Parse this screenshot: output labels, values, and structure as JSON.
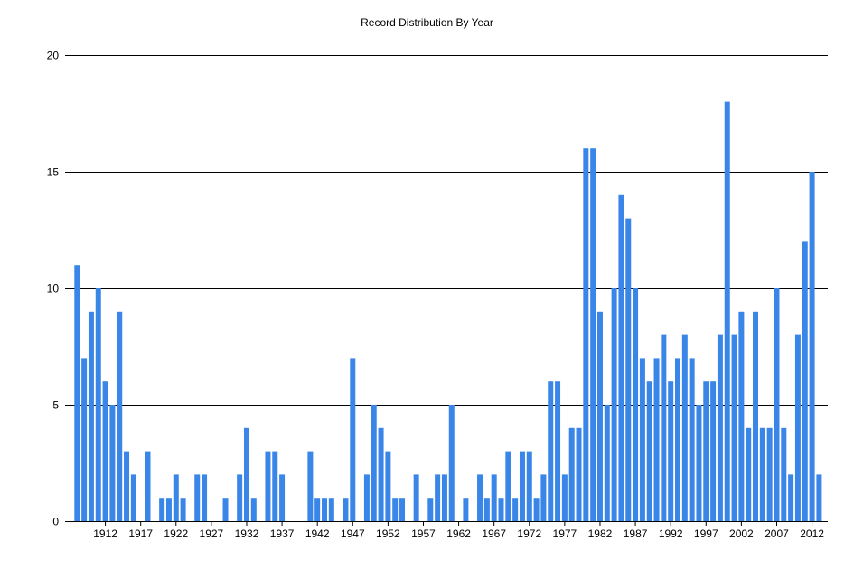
{
  "chart_data": {
    "type": "bar",
    "title": "Record Distribution By Year",
    "xlabel": "",
    "ylabel": "",
    "ylim": [
      0,
      20
    ],
    "y_ticks": [
      0,
      5,
      10,
      15,
      20
    ],
    "x_tick_labels": [
      "1912",
      "1917",
      "1922",
      "1927",
      "1932",
      "1937",
      "1942",
      "1947",
      "1952",
      "1957",
      "1962",
      "1967",
      "1972",
      "1977",
      "1982",
      "1987",
      "1992",
      "1997",
      "2002",
      "2007",
      "2012"
    ],
    "grid": "horizontal",
    "bar_color": "#3a86e8",
    "categories": [
      1908,
      1909,
      1910,
      1911,
      1912,
      1913,
      1914,
      1915,
      1916,
      1917,
      1918,
      1919,
      1920,
      1921,
      1922,
      1923,
      1924,
      1925,
      1926,
      1927,
      1928,
      1929,
      1930,
      1931,
      1932,
      1933,
      1934,
      1935,
      1936,
      1937,
      1938,
      1939,
      1940,
      1941,
      1942,
      1943,
      1944,
      1945,
      1946,
      1947,
      1948,
      1949,
      1950,
      1951,
      1952,
      1953,
      1954,
      1955,
      1956,
      1957,
      1958,
      1959,
      1960,
      1961,
      1962,
      1963,
      1964,
      1965,
      1966,
      1967,
      1968,
      1969,
      1970,
      1971,
      1972,
      1973,
      1974,
      1975,
      1976,
      1977,
      1978,
      1979,
      1980,
      1981,
      1982,
      1983,
      1984,
      1985,
      1986,
      1987,
      1988,
      1989,
      1990,
      1991,
      1992,
      1993,
      1994,
      1995,
      1996,
      1997,
      1998,
      1999,
      2000,
      2001,
      2002,
      2003,
      2004,
      2005,
      2006,
      2007,
      2008,
      2009,
      2010,
      2011,
      2012,
      2013
    ],
    "values": [
      11,
      7,
      9,
      10,
      6,
      5,
      9,
      3,
      2,
      0,
      3,
      0,
      1,
      1,
      2,
      1,
      0,
      2,
      2,
      0,
      0,
      1,
      0,
      2,
      4,
      1,
      0,
      3,
      3,
      2,
      0,
      0,
      0,
      3,
      1,
      1,
      1,
      0,
      1,
      7,
      0,
      2,
      5,
      4,
      3,
      1,
      1,
      0,
      2,
      0,
      1,
      2,
      2,
      5,
      0,
      1,
      0,
      2,
      1,
      2,
      1,
      3,
      1,
      3,
      3,
      1,
      2,
      6,
      6,
      2,
      4,
      4,
      16,
      16,
      9,
      5,
      10,
      14,
      13,
      10,
      7,
      6,
      7,
      8,
      6,
      7,
      8,
      7,
      5,
      6,
      6,
      8,
      18,
      8,
      9,
      4,
      9,
      4,
      4,
      10,
      4,
      2,
      8,
      12,
      15,
      2
    ]
  }
}
